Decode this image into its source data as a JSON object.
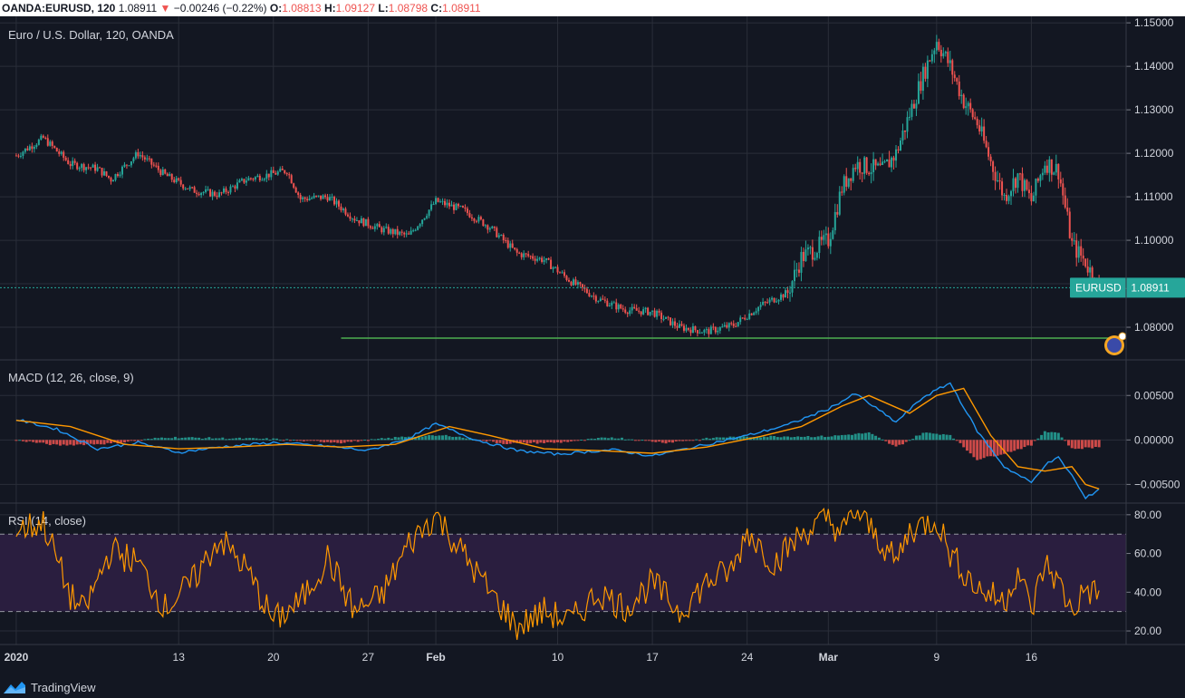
{
  "header": {
    "symbol": "OANDA:EURUSD, 120",
    "last": "1.08911",
    "change": "−0.00246 (−0.22%)",
    "o_label": "O:",
    "o_value": "1.08813",
    "h_label": "H:",
    "h_value": "1.09127",
    "l_label": "L:",
    "l_value": "1.08798",
    "c_label": "C:",
    "c_value": "1.08911"
  },
  "footer": {
    "brand": "TradingView"
  },
  "colors": {
    "background": "#131722",
    "grid": "#2a2e39",
    "up": "#26a69a",
    "down": "#ef5350",
    "macd_line": "#2196f3",
    "signal_line": "#ff9800",
    "rsi_line": "#ff9800",
    "rsi_band": "#2a1e3f",
    "support_line": "#4caf50",
    "price_tag": "#26a69a"
  },
  "chart_data": [
    {
      "type": "candlestick",
      "title": "Euro / U.S. Dollar, 120, OANDA",
      "ylim": [
        1.0725,
        1.1515
      ],
      "yticks": [
        "1.15000",
        "1.14000",
        "1.13000",
        "1.12000",
        "1.11000",
        "1.10000",
        "1.09000",
        "1.08000"
      ],
      "ytick_values": [
        1.15,
        1.14,
        1.13,
        1.12,
        1.11,
        1.1,
        1.09,
        1.08
      ],
      "x_dates": [
        "2020-01-01",
        "2020-03-21"
      ],
      "x_ticks": [
        {
          "date": "2020-01-01",
          "label": "2020"
        },
        {
          "date": "2020-01-13",
          "label": "13"
        },
        {
          "date": "2020-01-20",
          "label": "20"
        },
        {
          "date": "2020-01-27",
          "label": "27"
        },
        {
          "date": "2020-02-01",
          "label": "Feb"
        },
        {
          "date": "2020-02-10",
          "label": "10"
        },
        {
          "date": "2020-02-17",
          "label": "17"
        },
        {
          "date": "2020-02-24",
          "label": "24"
        },
        {
          "date": "2020-03-01",
          "label": "Mar"
        },
        {
          "date": "2020-03-09",
          "label": "9"
        },
        {
          "date": "2020-03-16",
          "label": "16"
        }
      ],
      "last_price": 1.08911,
      "price_tag": "EURUSD · 1.08911",
      "support_level": 1.0775,
      "support_start_date": "2020-01-25",
      "close_path": [
        [
          "2020-01-01",
          1.1195
        ],
        [
          "2020-01-03",
          1.1235
        ],
        [
          "2020-01-05",
          1.1175
        ],
        [
          "2020-01-07",
          1.1165
        ],
        [
          "2020-01-08",
          1.114
        ],
        [
          "2020-01-10",
          1.12
        ],
        [
          "2020-01-12",
          1.115
        ],
        [
          "2020-01-14",
          1.1115
        ],
        [
          "2020-01-16",
          1.1105
        ],
        [
          "2020-01-18",
          1.114
        ],
        [
          "2020-01-21",
          1.116
        ],
        [
          "2020-01-22",
          1.1095
        ],
        [
          "2020-01-24",
          1.11
        ],
        [
          "2020-01-26",
          1.105
        ],
        [
          "2020-01-28",
          1.1025
        ],
        [
          "2020-01-30",
          1.101
        ],
        [
          "2020-02-01",
          1.109
        ],
        [
          "2020-02-03",
          1.107
        ],
        [
          "2020-02-05",
          1.103
        ],
        [
          "2020-02-07",
          1.097
        ],
        [
          "2020-02-09",
          1.0955
        ],
        [
          "2020-02-11",
          1.0905
        ],
        [
          "2020-02-13",
          1.0865
        ],
        [
          "2020-02-15",
          1.084
        ],
        [
          "2020-02-17",
          1.0835
        ],
        [
          "2020-02-19",
          1.08
        ],
        [
          "2020-02-21",
          1.079
        ],
        [
          "2020-02-23",
          1.0805
        ],
        [
          "2020-02-25",
          1.085
        ],
        [
          "2020-02-27",
          1.088
        ],
        [
          "2020-02-28",
          1.096
        ],
        [
          "2020-03-01",
          1.1
        ],
        [
          "2020-03-02",
          1.112
        ],
        [
          "2020-03-03",
          1.1175
        ],
        [
          "2020-03-05",
          1.116
        ],
        [
          "2020-03-06",
          1.12
        ],
        [
          "2020-03-07",
          1.129
        ],
        [
          "2020-03-08",
          1.138
        ],
        [
          "2020-03-09",
          1.146
        ],
        [
          "2020-03-10",
          1.14
        ],
        [
          "2020-03-11",
          1.132
        ],
        [
          "2020-03-12",
          1.127
        ],
        [
          "2020-03-13",
          1.118
        ],
        [
          "2020-03-14",
          1.11
        ],
        [
          "2020-03-15",
          1.115
        ],
        [
          "2020-03-16",
          1.109
        ],
        [
          "2020-03-17",
          1.118
        ],
        [
          "2020-03-18",
          1.116
        ],
        [
          "2020-03-19",
          1.099
        ],
        [
          "2020-03-20",
          1.095
        ],
        [
          "2020-03-21",
          1.0891
        ]
      ]
    },
    {
      "type": "line",
      "title": "MACD (12, 26, close, 9)",
      "ylim": [
        -0.0071,
        0.009
      ],
      "yticks": [
        "0.00500",
        "0.00000",
        "−0.00500"
      ],
      "ytick_values": [
        0.005,
        0.0,
        -0.005
      ],
      "series": [
        {
          "role": "macd",
          "points": [
            [
              "2020-01-01",
              0.0023
            ],
            [
              "2020-01-04",
              0.0012
            ],
            [
              "2020-01-07",
              -0.001
            ],
            [
              "2020-01-10",
              -0.0003
            ],
            [
              "2020-01-13",
              -0.0014
            ],
            [
              "2020-01-16",
              -0.0008
            ],
            [
              "2020-01-20",
              -0.0003
            ],
            [
              "2020-01-24",
              -0.0007
            ],
            [
              "2020-01-27",
              -0.0012
            ],
            [
              "2020-01-30",
              0.0002
            ],
            [
              "2020-02-01",
              0.0018
            ],
            [
              "2020-02-04",
              0.0
            ],
            [
              "2020-02-07",
              -0.0012
            ],
            [
              "2020-02-10",
              -0.0016
            ],
            [
              "2020-02-14",
              -0.0011
            ],
            [
              "2020-02-17",
              -0.0018
            ],
            [
              "2020-02-21",
              -0.0005
            ],
            [
              "2020-02-24",
              0.0005
            ],
            [
              "2020-02-27",
              0.0017
            ],
            [
              "2020-03-01",
              0.0035
            ],
            [
              "2020-03-03",
              0.0052
            ],
            [
              "2020-03-06",
              0.002
            ],
            [
              "2020-03-08",
              0.0048
            ],
            [
              "2020-03-10",
              0.0064
            ],
            [
              "2020-03-12",
              0.001
            ],
            [
              "2020-03-14",
              -0.003
            ],
            [
              "2020-03-16",
              -0.0048
            ],
            [
              "2020-03-17",
              -0.0028
            ],
            [
              "2020-03-18",
              -0.002
            ],
            [
              "2020-03-19",
              -0.004
            ],
            [
              "2020-03-20",
              -0.0066
            ],
            [
              "2020-03-21",
              -0.0055
            ]
          ]
        },
        {
          "role": "signal",
          "points": [
            [
              "2020-01-01",
              0.0022
            ],
            [
              "2020-01-05",
              0.0015
            ],
            [
              "2020-01-09",
              -0.0005
            ],
            [
              "2020-01-13",
              -0.001
            ],
            [
              "2020-01-17",
              -0.0008
            ],
            [
              "2020-01-21",
              -0.0005
            ],
            [
              "2020-01-25",
              -0.0008
            ],
            [
              "2020-01-29",
              -0.0005
            ],
            [
              "2020-02-02",
              0.0015
            ],
            [
              "2020-02-05",
              0.0005
            ],
            [
              "2020-02-09",
              -0.001
            ],
            [
              "2020-02-13",
              -0.0012
            ],
            [
              "2020-02-17",
              -0.0015
            ],
            [
              "2020-02-21",
              -0.0008
            ],
            [
              "2020-02-25",
              0.0004
            ],
            [
              "2020-02-28",
              0.0015
            ],
            [
              "2020-03-02",
              0.0038
            ],
            [
              "2020-03-04",
              0.005
            ],
            [
              "2020-03-07",
              0.003
            ],
            [
              "2020-03-09",
              0.005
            ],
            [
              "2020-03-11",
              0.0058
            ],
            [
              "2020-03-13",
              0.0005
            ],
            [
              "2020-03-15",
              -0.003
            ],
            [
              "2020-03-17",
              -0.0035
            ],
            [
              "2020-03-19",
              -0.003
            ],
            [
              "2020-03-20",
              -0.005
            ],
            [
              "2020-03-21",
              -0.0055
            ]
          ]
        }
      ],
      "histogram_path": [
        [
          "2020-01-01",
          0.0
        ],
        [
          "2020-01-04",
          -0.0006
        ],
        [
          "2020-01-08",
          -0.0004
        ],
        [
          "2020-01-12",
          0.0003
        ],
        [
          "2020-01-16",
          0.0002
        ],
        [
          "2020-01-20",
          0.0001
        ],
        [
          "2020-01-25",
          -0.0003
        ],
        [
          "2020-01-30",
          0.0004
        ],
        [
          "2020-02-02",
          0.0005
        ],
        [
          "2020-02-06",
          -0.0004
        ],
        [
          "2020-02-10",
          -0.0003
        ],
        [
          "2020-02-14",
          0.0003
        ],
        [
          "2020-02-18",
          -0.0003
        ],
        [
          "2020-02-22",
          0.0003
        ],
        [
          "2020-02-26",
          0.0004
        ],
        [
          "2020-03-01",
          0.0004
        ],
        [
          "2020-03-04",
          0.0008
        ],
        [
          "2020-03-06",
          -0.0008
        ],
        [
          "2020-03-08",
          0.0008
        ],
        [
          "2020-03-10",
          0.0006
        ],
        [
          "2020-03-12",
          -0.0022
        ],
        [
          "2020-03-14",
          -0.0015
        ],
        [
          "2020-03-16",
          -0.0006
        ],
        [
          "2020-03-17",
          0.001
        ],
        [
          "2020-03-18",
          0.0008
        ],
        [
          "2020-03-19",
          -0.001
        ],
        [
          "2020-03-21",
          -0.0008
        ]
      ]
    },
    {
      "type": "line",
      "title": "RSI (14, close)",
      "ylim": [
        13,
        86
      ],
      "yticks": [
        "80.00",
        "60.00",
        "40.00",
        "20.00"
      ],
      "ytick_values": [
        80,
        60,
        40,
        20
      ],
      "band": [
        30,
        70
      ],
      "points": [
        [
          "2020-01-01",
          72
        ],
        [
          "2020-01-03",
          76
        ],
        [
          "2020-01-05",
          38
        ],
        [
          "2020-01-06",
          30
        ],
        [
          "2020-01-08",
          62
        ],
        [
          "2020-01-10",
          55
        ],
        [
          "2020-01-12",
          32
        ],
        [
          "2020-01-14",
          45
        ],
        [
          "2020-01-16",
          68
        ],
        [
          "2020-01-18",
          52
        ],
        [
          "2020-01-20",
          25
        ],
        [
          "2020-01-22",
          35
        ],
        [
          "2020-01-24",
          58
        ],
        [
          "2020-01-26",
          30
        ],
        [
          "2020-01-28",
          38
        ],
        [
          "2020-01-30",
          65
        ],
        [
          "2020-02-01",
          80
        ],
        [
          "2020-02-03",
          60
        ],
        [
          "2020-02-05",
          40
        ],
        [
          "2020-02-07",
          22
        ],
        [
          "2020-02-09",
          30
        ],
        [
          "2020-02-11",
          25
        ],
        [
          "2020-02-13",
          40
        ],
        [
          "2020-02-15",
          32
        ],
        [
          "2020-02-17",
          45
        ],
        [
          "2020-02-19",
          30
        ],
        [
          "2020-02-21",
          45
        ],
        [
          "2020-02-23",
          52
        ],
        [
          "2020-02-24",
          72
        ],
        [
          "2020-02-26",
          55
        ],
        [
          "2020-02-28",
          70
        ],
        [
          "2020-03-01",
          78
        ],
        [
          "2020-03-02",
          70
        ],
        [
          "2020-03-03",
          82
        ],
        [
          "2020-03-05",
          65
        ],
        [
          "2020-03-06",
          55
        ],
        [
          "2020-03-07",
          72
        ],
        [
          "2020-03-09",
          78
        ],
        [
          "2020-03-10",
          60
        ],
        [
          "2020-03-12",
          42
        ],
        [
          "2020-03-14",
          35
        ],
        [
          "2020-03-15",
          52
        ],
        [
          "2020-03-16",
          30
        ],
        [
          "2020-03-17",
          55
        ],
        [
          "2020-03-18",
          45
        ],
        [
          "2020-03-19",
          30
        ],
        [
          "2020-03-20",
          42
        ],
        [
          "2020-03-21",
          38
        ]
      ]
    }
  ]
}
